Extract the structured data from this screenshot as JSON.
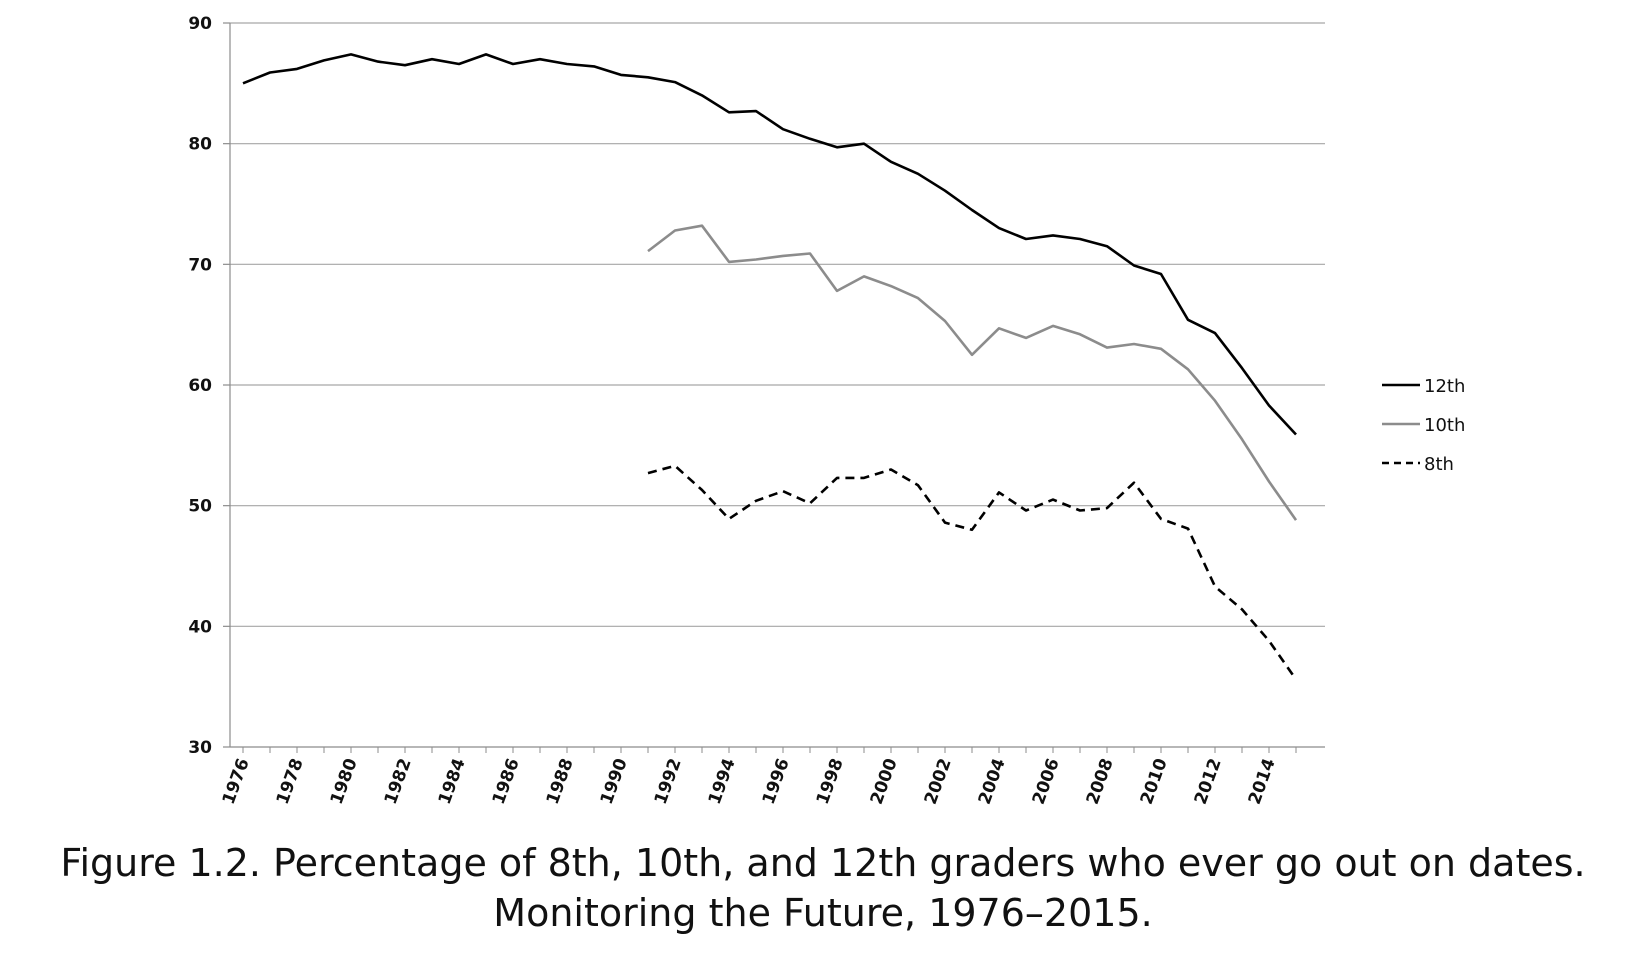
{
  "caption": {
    "line1": "Figure 1.2. Percentage of 8th, 10th, and 12th graders who ever go out on dates.",
    "line2": "Monitoring the Future, 1976–2015."
  },
  "chart_data": {
    "type": "line",
    "title": "",
    "xlabel": "",
    "ylabel": "",
    "ylim": [
      30,
      90
    ],
    "yticks": [
      30,
      40,
      50,
      60,
      70,
      80,
      90
    ],
    "xlim": [
      1976,
      2015
    ],
    "xtick_labels": [
      "1976",
      "1978",
      "1980",
      "1982",
      "1984",
      "1986",
      "1988",
      "1990",
      "1992",
      "1994",
      "1996",
      "1998",
      "2000",
      "2002",
      "2004",
      "2006",
      "2008",
      "2010",
      "2012",
      "2014"
    ],
    "grid": "horizontal",
    "legend_position": "right",
    "series": [
      {
        "name": "12th",
        "color": "#000000",
        "style": "solid",
        "x": [
          1976,
          1977,
          1978,
          1979,
          1980,
          1981,
          1982,
          1983,
          1984,
          1985,
          1986,
          1987,
          1988,
          1989,
          1990,
          1991,
          1992,
          1993,
          1994,
          1995,
          1996,
          1997,
          1998,
          1999,
          2000,
          2001,
          2002,
          2003,
          2004,
          2005,
          2006,
          2007,
          2008,
          2009,
          2010,
          2011,
          2012,
          2013,
          2014,
          2015
        ],
        "values": [
          85.0,
          85.9,
          86.2,
          86.9,
          87.4,
          86.8,
          86.5,
          87.0,
          86.6,
          87.4,
          86.6,
          87.0,
          86.6,
          86.4,
          85.7,
          85.5,
          85.1,
          84.0,
          82.6,
          82.7,
          81.2,
          80.4,
          79.7,
          80.0,
          78.5,
          77.5,
          76.1,
          74.5,
          73.0,
          72.1,
          72.4,
          72.1,
          71.5,
          69.9,
          69.2,
          65.4,
          64.3,
          61.4,
          58.3,
          55.9
        ]
      },
      {
        "name": "10th",
        "color": "#8c8c8c",
        "style": "solid",
        "x": [
          1991,
          1992,
          1993,
          1994,
          1995,
          1996,
          1997,
          1998,
          1999,
          2000,
          2001,
          2002,
          2003,
          2004,
          2005,
          2006,
          2007,
          2008,
          2009,
          2010,
          2011,
          2012,
          2013,
          2014,
          2015
        ],
        "values": [
          71.1,
          72.8,
          73.2,
          70.2,
          70.4,
          70.7,
          70.9,
          67.8,
          69.0,
          68.2,
          67.2,
          65.3,
          62.5,
          64.7,
          63.9,
          64.9,
          64.2,
          63.1,
          63.4,
          63.0,
          61.3,
          58.7,
          55.5,
          52.0,
          48.8
        ]
      },
      {
        "name": "8th",
        "color": "#000000",
        "style": "dashed",
        "x": [
          1991,
          1992,
          1993,
          1994,
          1995,
          1996,
          1997,
          1998,
          1999,
          2000,
          2001,
          2002,
          2003,
          2004,
          2005,
          2006,
          2007,
          2008,
          2009,
          2010,
          2011,
          2012,
          2013,
          2014,
          2015
        ],
        "values": [
          52.7,
          53.3,
          51.3,
          48.9,
          50.4,
          51.2,
          50.2,
          52.3,
          52.3,
          53.0,
          51.7,
          48.6,
          48.0,
          51.1,
          49.6,
          50.5,
          49.6,
          49.8,
          51.9,
          48.9,
          48.1,
          43.3,
          41.4,
          38.8,
          35.6
        ]
      }
    ]
  }
}
